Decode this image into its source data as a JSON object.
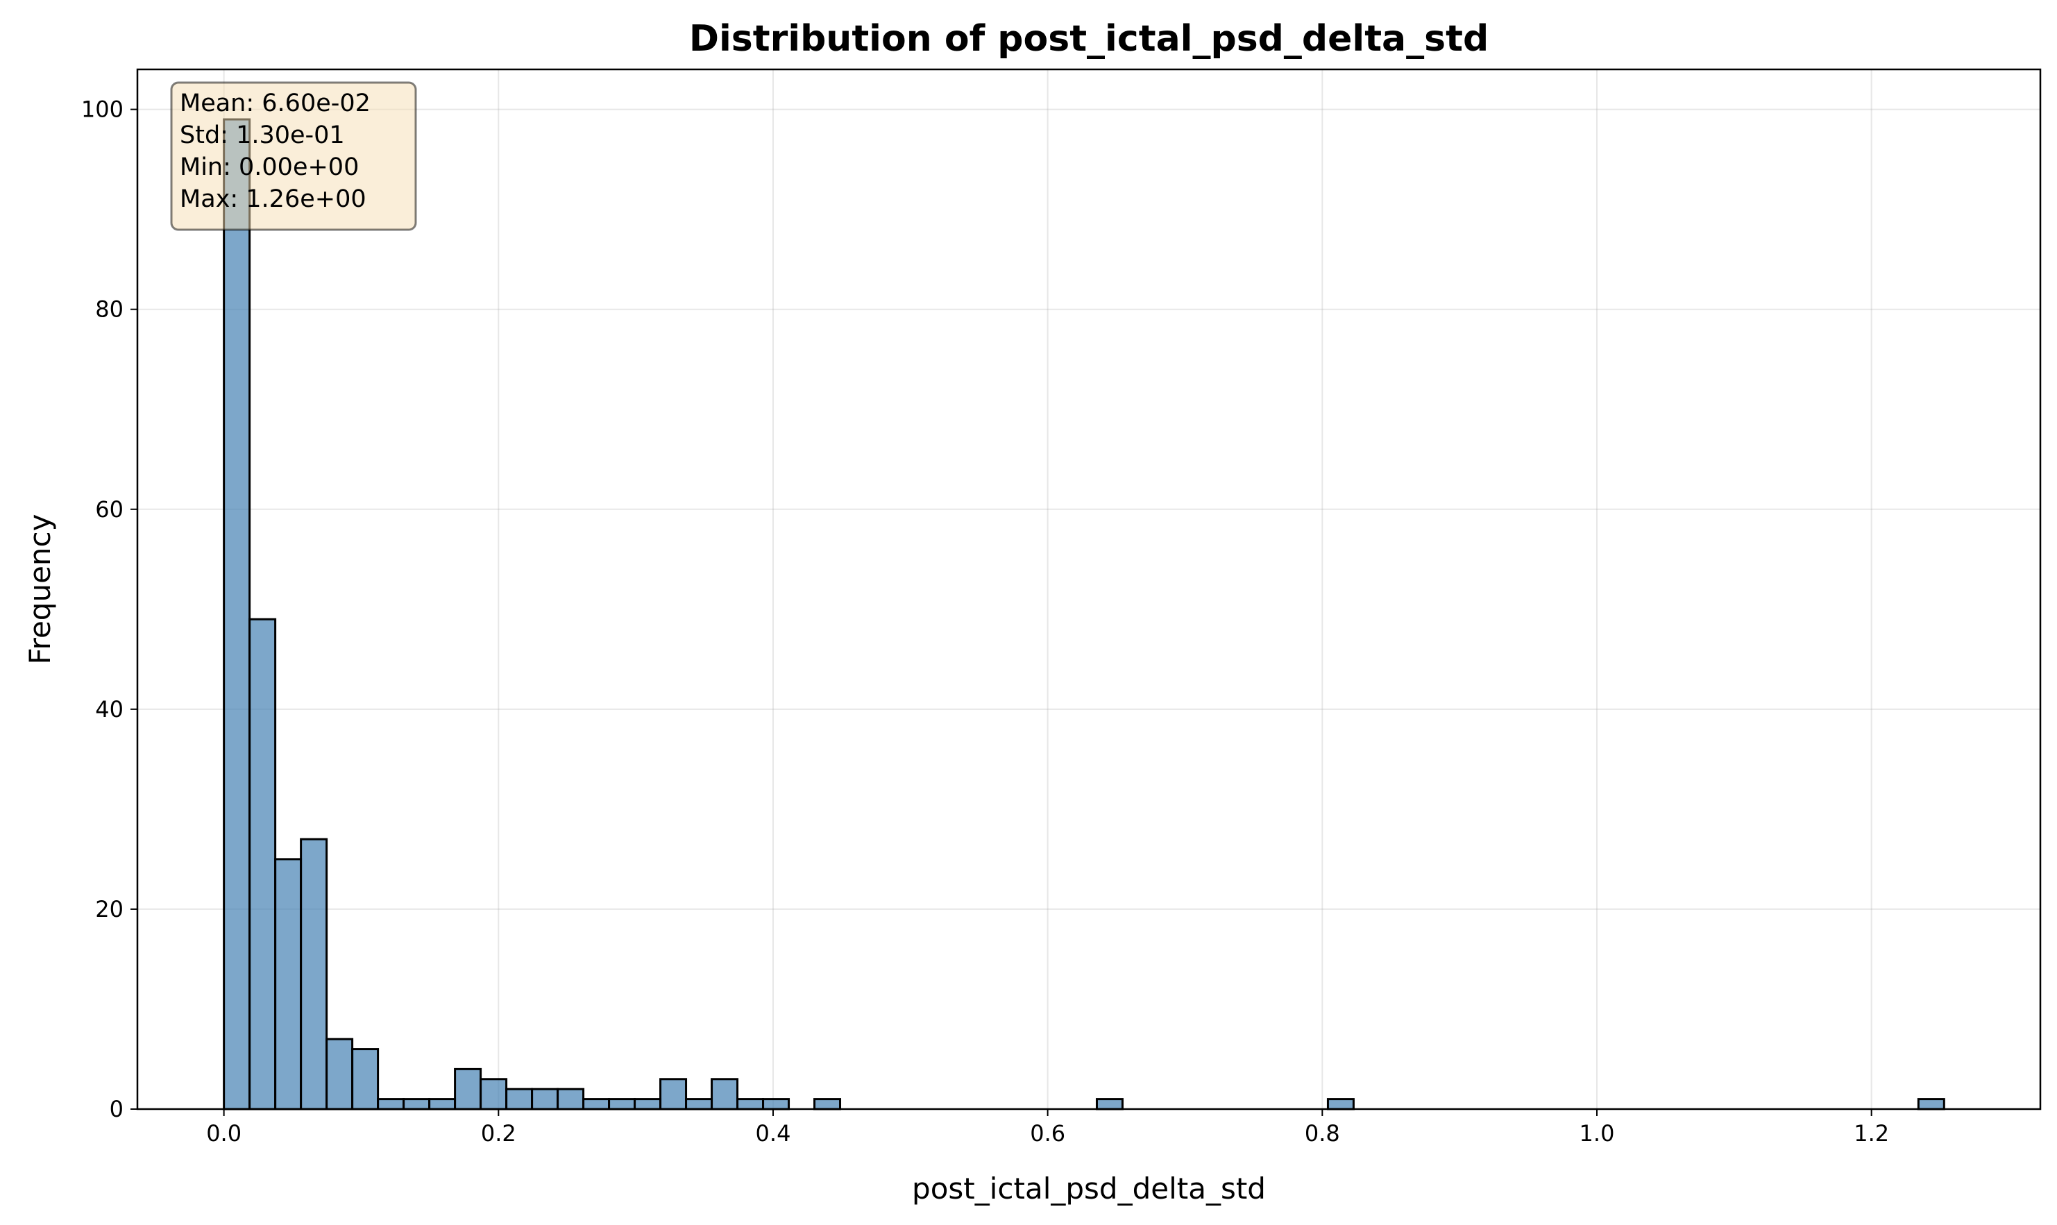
{
  "chart_data": {
    "type": "bar",
    "title": "Distribution of post_ictal_psd_delta_std",
    "xlabel": "post_ictal_psd_delta_std",
    "ylabel": "Frequency",
    "xlim": [
      -0.063,
      1.323
    ],
    "ylim": [
      0,
      104
    ],
    "x_ticks": [
      0.0,
      0.2,
      0.4,
      0.6,
      0.8,
      1.0,
      1.2
    ],
    "x_tick_labels": [
      "0.0",
      "0.2",
      "0.4",
      "0.6",
      "0.8",
      "1.0",
      "1.2"
    ],
    "y_ticks": [
      0,
      20,
      40,
      60,
      80,
      100
    ],
    "y_tick_labels": [
      "0",
      "20",
      "40",
      "60",
      "80",
      "100"
    ],
    "grid": true,
    "bar_color": "#4682b4",
    "bar_edge_color": "#000000",
    "bin_start": 0.0,
    "bin_width": 0.0187,
    "values": [
      99,
      49,
      25,
      27,
      7,
      6,
      1,
      1,
      1,
      4,
      3,
      2,
      2,
      2,
      1,
      1,
      1,
      3,
      1,
      3,
      1,
      1,
      0,
      1,
      0,
      0,
      0,
      0,
      0,
      0,
      0,
      0,
      0,
      0,
      1,
      0,
      0,
      0,
      0,
      0,
      0,
      0,
      0,
      1,
      0,
      0,
      0,
      0,
      0,
      0,
      0,
      0,
      0,
      0,
      0,
      0,
      0,
      0,
      0,
      0,
      0,
      0,
      0,
      0,
      0,
      0,
      1
    ],
    "stats_box": {
      "lines": [
        "Mean: 6.60e-02",
        "Std: 1.30e-01",
        "Min: 0.00e+00",
        "Max: 1.26e+00"
      ],
      "placement": "top-left",
      "fill": "#f5deb3"
    }
  }
}
